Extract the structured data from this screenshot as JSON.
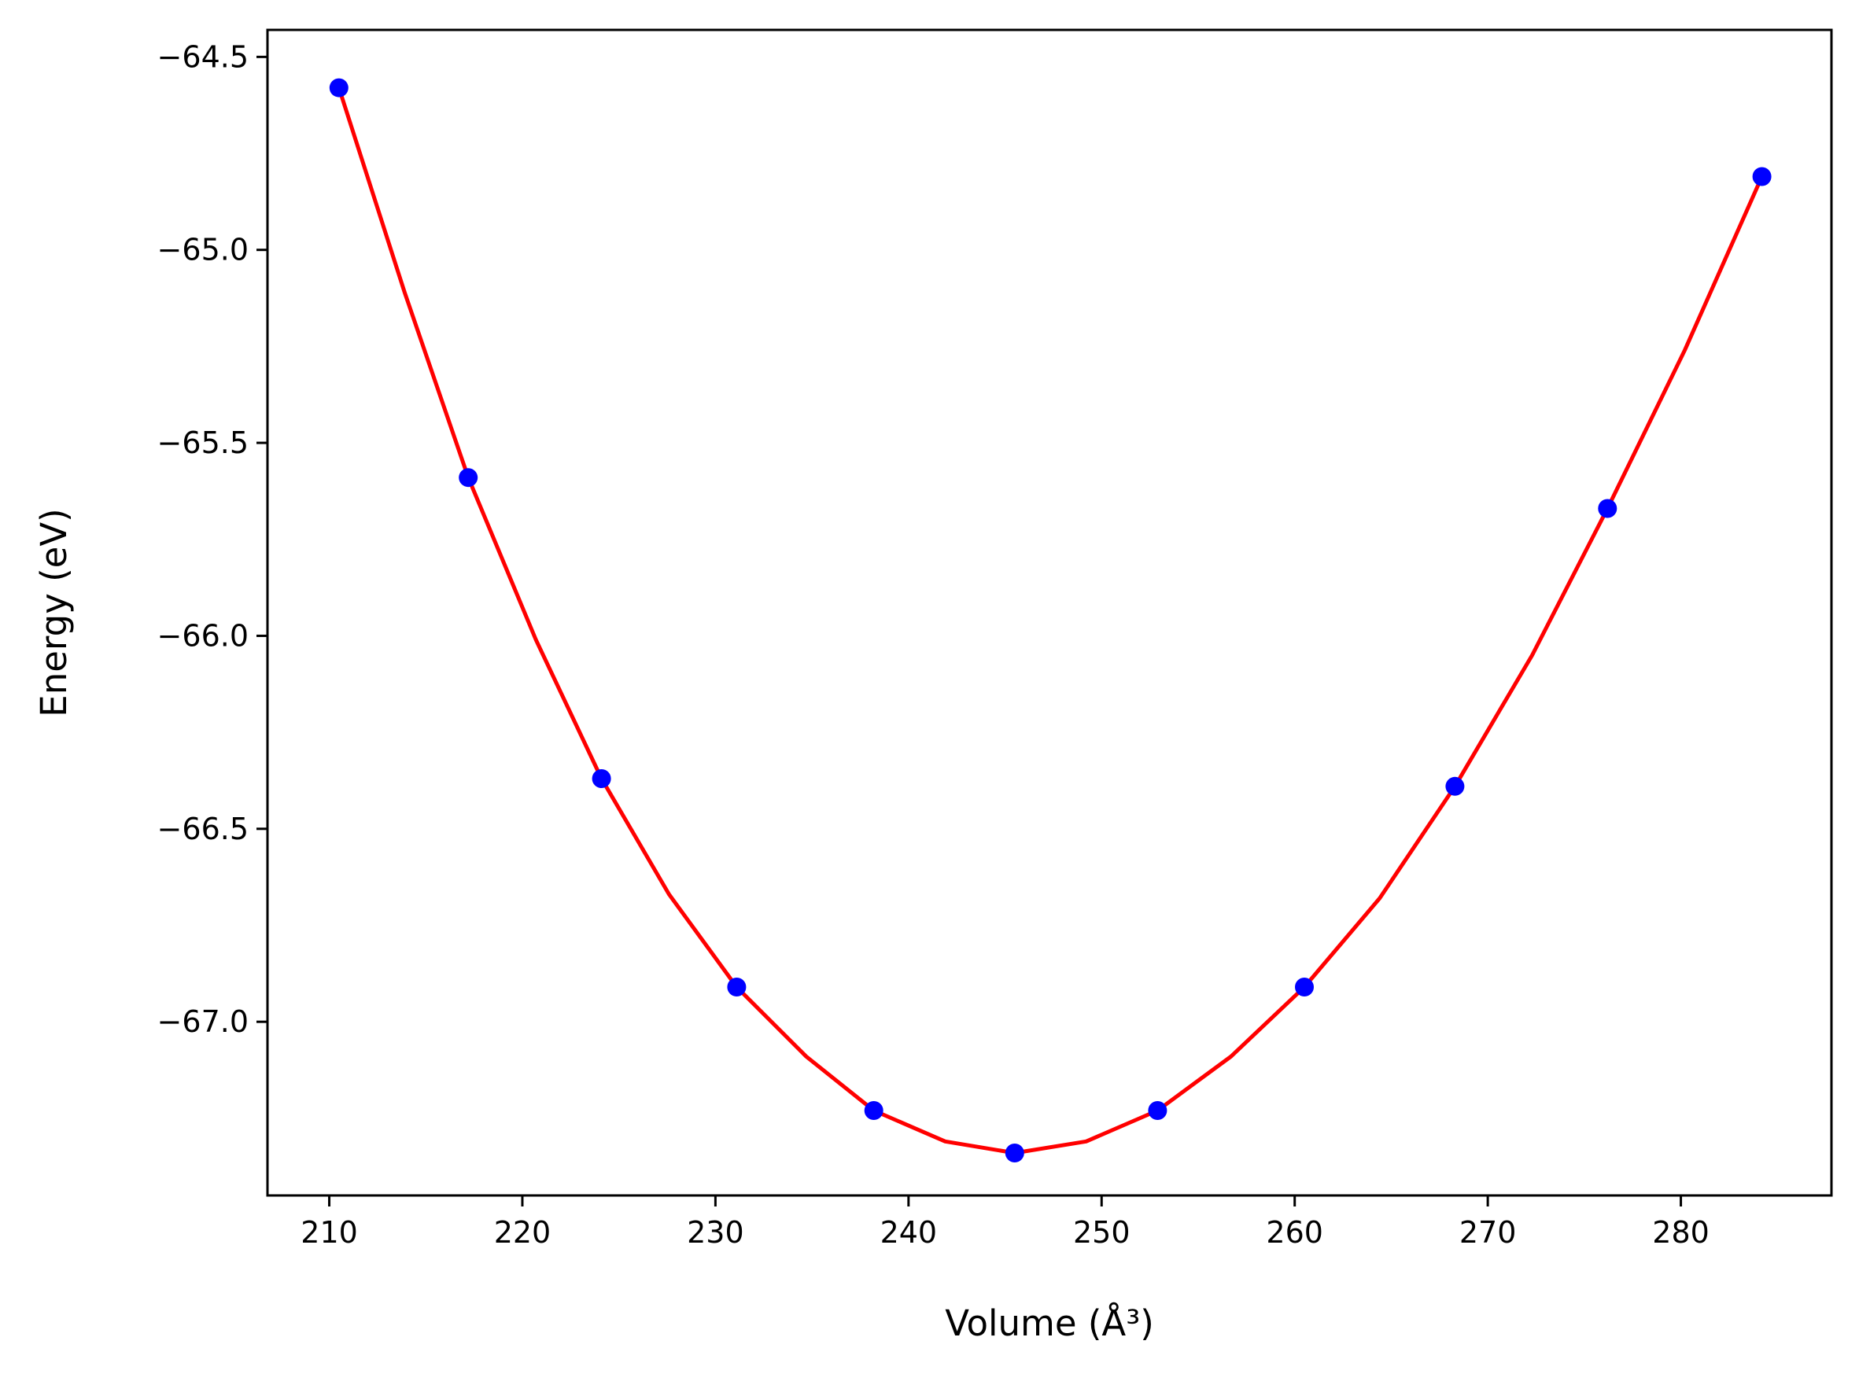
{
  "chart_data": {
    "type": "scatter",
    "xlabel": "Volume (Å³)",
    "ylabel": "Energy (eV)",
    "xlim": [
      206.8,
      287.8
    ],
    "ylim": [
      -67.45,
      -64.43
    ],
    "xticks": [
      210,
      220,
      230,
      240,
      250,
      260,
      270,
      280
    ],
    "yticks": [
      -64.5,
      -65.0,
      -65.5,
      -66.0,
      -66.5,
      -67.0
    ],
    "ytick_labels": [
      "−64.5",
      "−65.0",
      "−65.5",
      "−66.0",
      "−66.5",
      "−67.0"
    ],
    "grid": false,
    "series": [
      {
        "kind": "points",
        "color": "#0000ff",
        "x": [
          210.5,
          217.2,
          224.1,
          231.1,
          238.2,
          245.5,
          252.9,
          260.5,
          268.3,
          276.2,
          284.2
        ],
        "y": [
          -64.58,
          -65.59,
          -66.37,
          -66.91,
          -67.23,
          -67.34,
          -67.23,
          -66.91,
          -66.39,
          -65.67,
          -64.81
        ]
      },
      {
        "kind": "fit_line",
        "color": "#ff0000",
        "x": [
          210.5,
          213.9,
          217.2,
          220.7,
          224.1,
          227.6,
          231.1,
          234.7,
          238.2,
          241.9,
          245.5,
          249.2,
          252.9,
          256.7,
          260.5,
          264.4,
          268.3,
          272.3,
          276.2,
          280.2,
          284.2
        ],
        "y": [
          -64.58,
          -65.11,
          -65.59,
          -66.01,
          -66.37,
          -66.67,
          -66.91,
          -67.09,
          -67.23,
          -67.31,
          -67.34,
          -67.31,
          -67.23,
          -67.09,
          -66.91,
          -66.68,
          -66.39,
          -66.05,
          -65.67,
          -65.26,
          -64.81
        ]
      }
    ]
  }
}
